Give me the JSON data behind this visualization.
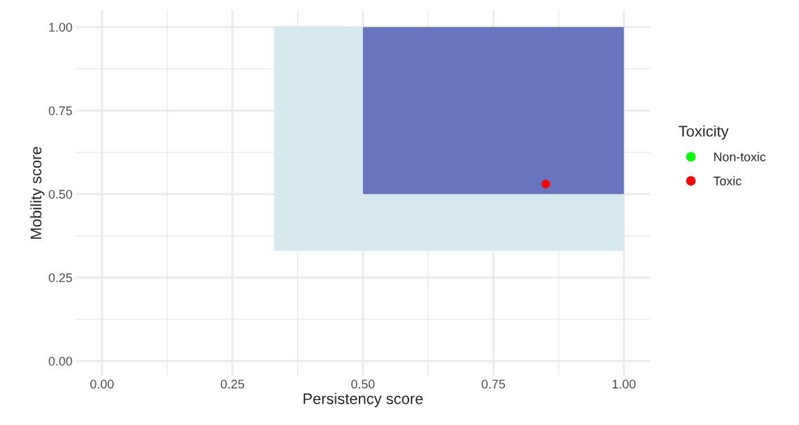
{
  "chart_data": {
    "type": "scatter",
    "xlabel": "Persistency score",
    "ylabel": "Mobility score",
    "legend_title": "Toxicity",
    "series": [
      {
        "type": "line",
        "color": "#d5e9ef",
        "x": [
          0.33,
          1.0
        ],
        "values": [
          null,
          null
        ],
        "lower": [
          0.33,
          0.33
        ],
        "upper": [
          1.0,
          1.0
        ]
      },
      {
        "type": "line",
        "color": "#6874be",
        "x": [
          0.5,
          1.0
        ],
        "values": [
          null,
          null
        ],
        "lower": [
          0.5,
          0.5
        ],
        "upper": [
          1.0,
          1.0
        ]
      },
      {
        "name": "Non-toxic",
        "color": "#00ff00",
        "marker": "circle"
      },
      {
        "name": "Toxic",
        "color": "#ff0000",
        "marker": "circle",
        "x": [
          0.85
        ],
        "values": [
          0.53
        ]
      }
    ],
    "xlim": [
      -0.05,
      1.05
    ],
    "ylim": [
      -0.045,
      1.05
    ],
    "xticks": [
      {
        "value": 0,
        "label": "0.00"
      },
      {
        "value": 0.25,
        "label": "0.25"
      },
      {
        "value": 0.5,
        "label": "0.50"
      },
      {
        "value": 0.75,
        "label": "0.75"
      },
      {
        "value": 1,
        "label": "1.00"
      }
    ],
    "yticks": [
      {
        "value": 0,
        "label": "0.00"
      },
      {
        "value": 0.25,
        "label": "0.25"
      },
      {
        "value": 0.5,
        "label": "0.50"
      },
      {
        "value": 0.75,
        "label": "0.75"
      },
      {
        "value": 1,
        "label": "1.00"
      }
    ],
    "grid": true,
    "legend": "right"
  }
}
